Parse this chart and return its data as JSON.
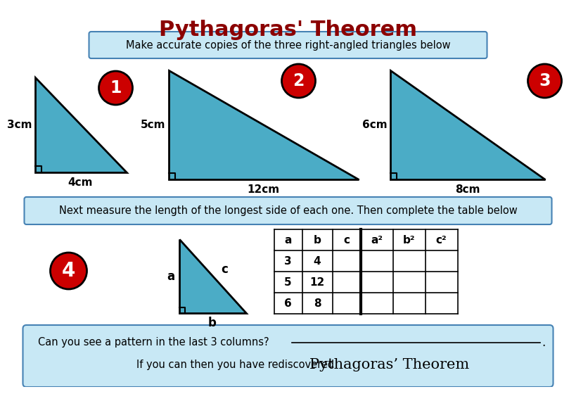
{
  "title": "Pythagoras' Theorem",
  "title_color": "#8B0000",
  "title_fontsize": 22,
  "bg_color": "#FFFFFF",
  "triangle_color": "#4BACC6",
  "triangle_edge_color": "#000000",
  "box_bg": "#C8E8F5",
  "box_edge": "#4682B4",
  "circle_color": "#CC0000",
  "circle_edge": "#000000",
  "instruction1": "Make accurate copies of the three right-angled triangles below",
  "instruction2": "Next measure the length of the longest side of each one. Then complete the table below",
  "bottom_text1": "Can you see a pattern in the last 3 columns?",
  "bottom_text2_part1": "If you can then you have rediscovered ",
  "bottom_text2_part2": "Pythagoras’ Theorem",
  "triangle1_vert": "3cm",
  "triangle1_horiz": "4cm",
  "triangle2_vert": "5cm",
  "triangle2_horiz": "12cm",
  "triangle3_vert": "6cm",
  "triangle3_horiz": "8cm",
  "label1": "1",
  "label2": "2",
  "label3": "3",
  "label4": "4",
  "table_headers": [
    "a",
    "b",
    "c",
    "a²",
    "b²",
    "c²"
  ],
  "table_rows": [
    [
      "3",
      "4",
      "",
      "",
      "",
      ""
    ],
    [
      "5",
      "12",
      "",
      "",
      "",
      ""
    ],
    [
      "6",
      "8",
      "",
      "",
      "",
      ""
    ]
  ],
  "t1": {
    "x": [
      30,
      30,
      160
    ],
    "ytop": 100,
    "ybot": 235
  },
  "t2": {
    "x": [
      220,
      220,
      490
    ],
    "ytop": 90,
    "ybot": 245
  },
  "t3": {
    "x": [
      535,
      535,
      755
    ],
    "ytop": 90,
    "ybot": 245
  },
  "t4": {
    "x": [
      235,
      235,
      330
    ],
    "ytop": 330,
    "ybot": 435
  }
}
